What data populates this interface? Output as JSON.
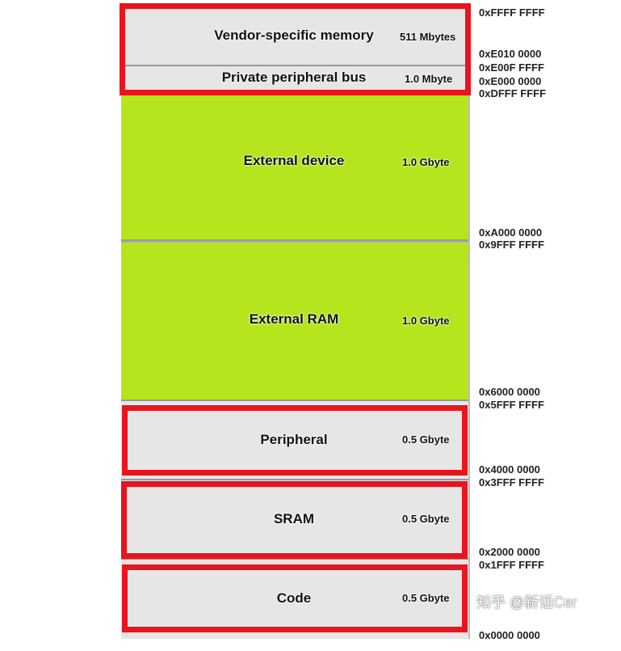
{
  "regions": [
    {
      "name": "Vendor-specific memory",
      "size": "511 Mbytes",
      "color": "#e6e6e6",
      "highlighted": true
    },
    {
      "name": "Private peripheral bus",
      "size": "1.0 Mbyte",
      "color": "#e6e6e6",
      "highlighted": true
    },
    {
      "name": "External device",
      "size": "1.0 Gbyte",
      "color": "#b5e61d",
      "highlighted": false
    },
    {
      "name": "External RAM",
      "size": "1.0 Gbyte",
      "color": "#b5e61d",
      "highlighted": false
    },
    {
      "name": "Peripheral",
      "size": "0.5 Gbyte",
      "color": "#e6e6e6",
      "highlighted": true
    },
    {
      "name": "SRAM",
      "size": "0.5 Gbyte",
      "color": "#e6e6e6",
      "highlighted": true
    },
    {
      "name": "Code",
      "size": "0.5 Gbyte",
      "color": "#e6e6e6",
      "highlighted": true
    }
  ],
  "addresses": [
    "0xFFFF FFFF",
    "0xE010 0000",
    "0xE00F FFFF",
    "0xE000 0000",
    "0xDFFF FFFF",
    "0xA000 0000",
    "0x9FFF FFFF",
    "0x6000 0000",
    "0x5FFF FFFF",
    "0x4000 0000",
    "0x3FFF FFFF",
    "0x2000 0000",
    "0x1FFF FFFF",
    "0x0000 0000"
  ],
  "highlight_color": "#e8141e",
  "watermark": "知乎 @新话Cer"
}
